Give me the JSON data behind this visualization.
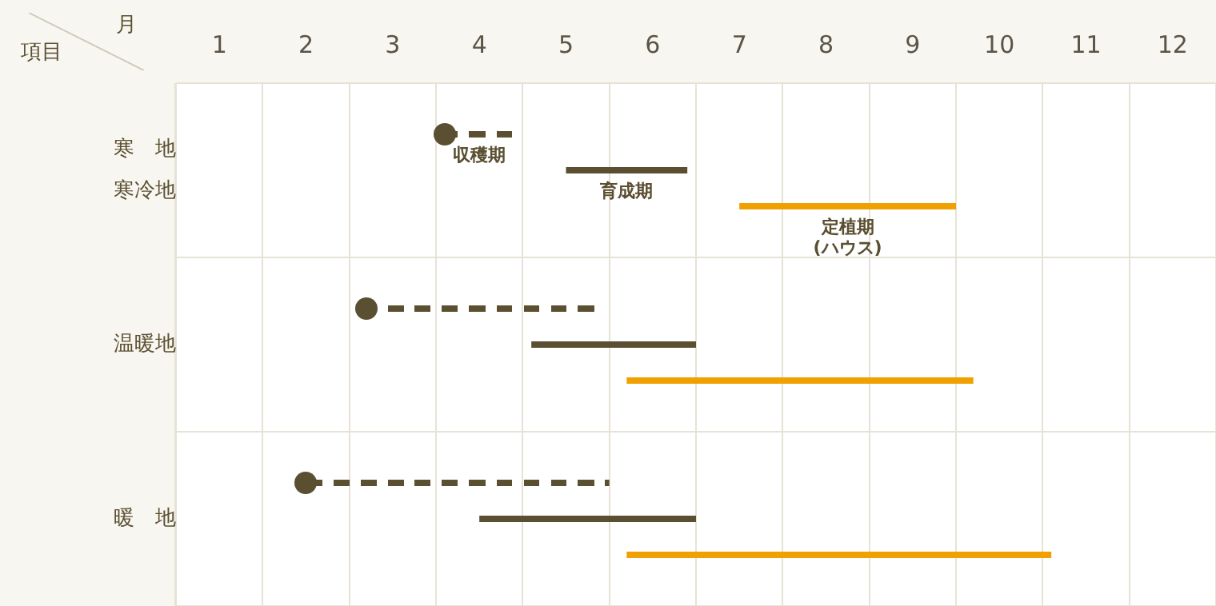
{
  "chart_data": {
    "type": "bar",
    "orientation": "horizontal",
    "xlabel": "月",
    "ylabel": "項目",
    "categories": [
      "寒　地寒冷地",
      "温暖地",
      "暖　地"
    ],
    "series": [
      {
        "name": "収穫期",
        "color": "#5b4f31",
        "base": [
          4.1,
          3.2,
          2.5
        ],
        "values": [
          0.8,
          2.7,
          3.5
        ],
        "line_style": "dashed",
        "marker": "circle"
      },
      {
        "name": "育成期",
        "color": "#5b4f31",
        "base": [
          5.5,
          5.1,
          4.5
        ],
        "values": [
          1.4,
          1.9,
          2.5
        ]
      },
      {
        "name": "定植期(ハウス)",
        "color": "#f0a000",
        "base": [
          7.5,
          6.2,
          6.2
        ],
        "values": [
          2.5,
          4.0,
          4.9
        ]
      }
    ],
    "xlim": [
      1,
      13
    ],
    "xticks": [
      {
        "value": 1,
        "label": null
      },
      {
        "value": 1.5,
        "label": "1"
      },
      {
        "value": 2,
        "label": null
      },
      {
        "value": 2.5,
        "label": "2"
      },
      {
        "value": 3,
        "label": null
      },
      {
        "value": 3.5,
        "label": "3"
      },
      {
        "value": 4,
        "label": null
      },
      {
        "value": 4.5,
        "label": "4"
      },
      {
        "value": 5,
        "label": null
      },
      {
        "value": 5.5,
        "label": "5"
      },
      {
        "value": 6,
        "label": null
      },
      {
        "value": 6.5,
        "label": "6"
      },
      {
        "value": 7,
        "label": null
      },
      {
        "value": 7.5,
        "label": "7"
      },
      {
        "value": 8,
        "label": null
      },
      {
        "value": 8.5,
        "label": "8"
      },
      {
        "value": 9,
        "label": null
      },
      {
        "value": 9.5,
        "label": "9"
      },
      {
        "value": 10,
        "label": null
      },
      {
        "value": 10.5,
        "label": "10"
      },
      {
        "value": 11,
        "label": null
      },
      {
        "value": 11.5,
        "label": "11"
      },
      {
        "value": 12,
        "label": null
      },
      {
        "value": 12.5,
        "label": "12"
      },
      {
        "value": 13,
        "label": null
      }
    ],
    "grid": true
  }
}
